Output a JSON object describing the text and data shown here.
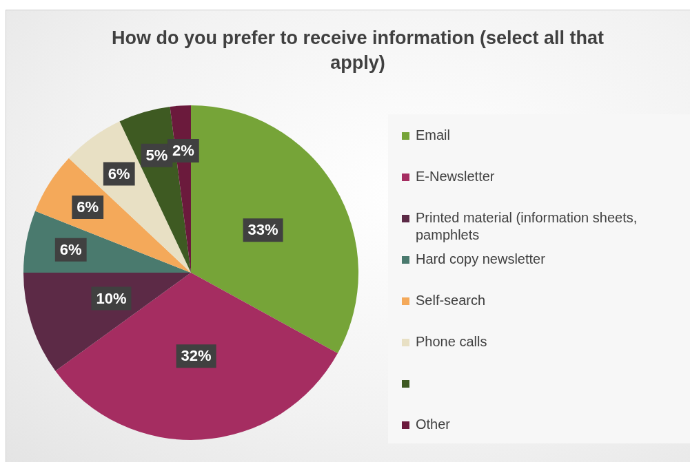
{
  "chart_data": {
    "type": "pie",
    "title": "How do you prefer to receive information (select all that apply)",
    "categories": [
      "Email",
      "E-Newsletter",
      "Printed material (information sheets, pamphlets",
      "Hard copy newsletter",
      "Self-search",
      "Phone calls",
      null,
      "Other"
    ],
    "values": [
      33,
      32,
      10,
      6,
      6,
      6,
      5,
      2
    ],
    "colors": [
      "#76a438",
      "#a52d61",
      "#5c2a46",
      "#4a7a6e",
      "#f4a95a",
      "#e8e0c4",
      "#3e5a22",
      "#6b1a3c"
    ],
    "value_labels": [
      "33%",
      "32%",
      "10%",
      "6%",
      "6%",
      "6%",
      "5%",
      "2%"
    ],
    "legend": "right"
  }
}
